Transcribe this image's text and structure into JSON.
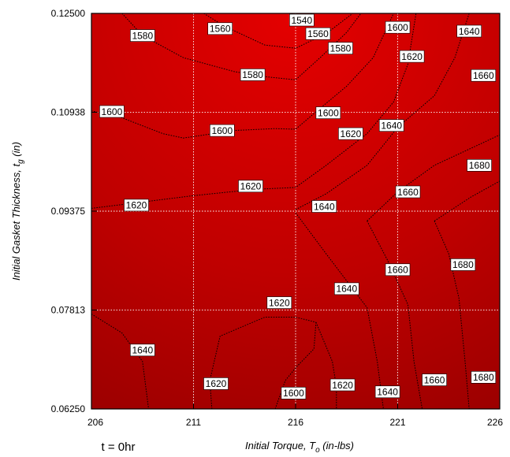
{
  "chart_data": {
    "type": "contour",
    "x_ticks": [
      "206",
      "211",
      "216",
      "221",
      "226"
    ],
    "y_ticks": [
      "0.06250",
      "0.07813",
      "0.09375",
      "0.10938",
      "0.12500"
    ],
    "xlim": [
      206,
      226
    ],
    "ylim": [
      0.0625,
      0.125
    ],
    "grid": true,
    "xlabel": "Initial Torque, T",
    "xlabel_sub": "o",
    "xlabel_unit": " (in-lbs)",
    "ylabel": "Initial Gasket Thickness, t",
    "ylabel_sub": "g",
    "ylabel_unit": " (in)",
    "annotation": "t = 0hr",
    "colors": {
      "low": "#e40000",
      "high": "#960000",
      "grid": "#ffffff",
      "contour": "#000000"
    },
    "contours": [
      {
        "level": "1540",
        "points": [
          [
            215.8,
            0.125
          ],
          [
            216.3,
            0.124
          ],
          [
            216.8,
            0.125
          ]
        ]
      },
      {
        "level": "1560",
        "points": [
          [
            211.5,
            0.125
          ],
          [
            212.5,
            0.123
          ],
          [
            214.5,
            0.12
          ],
          [
            216.0,
            0.1195
          ],
          [
            217.5,
            0.1218
          ],
          [
            218.8,
            0.125
          ]
        ]
      },
      {
        "level": "1580",
        "points": [
          [
            207.5,
            0.125
          ],
          [
            208.5,
            0.1215
          ],
          [
            210.5,
            0.118
          ],
          [
            213.0,
            0.1158
          ],
          [
            214.5,
            0.115
          ],
          [
            216.0,
            0.1145
          ],
          [
            217.2,
            0.118
          ],
          [
            218.5,
            0.122
          ],
          [
            219.2,
            0.125
          ]
        ]
      },
      {
        "level": "1600",
        "points": [
          [
            206.0,
            0.1096
          ],
          [
            207.5,
            0.1085
          ],
          [
            209.5,
            0.106
          ],
          [
            210.5,
            0.1053
          ],
          [
            213.0,
            0.1065
          ],
          [
            215.0,
            0.1068
          ],
          [
            216.0,
            0.1067
          ],
          [
            217.2,
            0.11
          ],
          [
            218.5,
            0.1135
          ],
          [
            219.8,
            0.118
          ],
          [
            220.8,
            0.125
          ]
        ]
      },
      {
        "level": "1620",
        "points": [
          [
            206.0,
            0.0942
          ],
          [
            208.0,
            0.095
          ],
          [
            211.0,
            0.0962
          ],
          [
            214.0,
            0.0972
          ],
          [
            216.0,
            0.0975
          ],
          [
            217.5,
            0.101
          ],
          [
            219.5,
            0.106
          ],
          [
            220.8,
            0.111
          ],
          [
            221.5,
            0.117
          ],
          [
            221.9,
            0.125
          ]
        ]
      },
      {
        "level": "1640",
        "points": [
          [
            216.0,
            0.094
          ],
          [
            217.5,
            0.0965
          ],
          [
            219.5,
            0.101
          ],
          [
            221.0,
            0.107
          ],
          [
            222.8,
            0.112
          ],
          [
            223.8,
            0.118
          ],
          [
            224.5,
            0.125
          ]
        ]
      },
      {
        "level": "1660",
        "points": [
          [
            219.5,
            0.0922
          ],
          [
            221.0,
            0.0968
          ],
          [
            222.8,
            0.101
          ],
          [
            224.8,
            0.104
          ],
          [
            226.0,
            0.1058
          ]
        ]
      },
      {
        "level": "1680",
        "points": [
          [
            222.8,
            0.0922
          ],
          [
            224.6,
            0.096
          ],
          [
            226.0,
            0.0985
          ]
        ]
      },
      {
        "level": "1640",
        "points": [
          [
            206.0,
            0.0775
          ],
          [
            207.5,
            0.0745
          ],
          [
            208.5,
            0.07
          ],
          [
            208.8,
            0.0625
          ]
        ]
      },
      {
        "level": "1620",
        "points": [
          [
            211.9,
            0.0625
          ],
          [
            211.8,
            0.067
          ],
          [
            212.3,
            0.074
          ],
          [
            214.5,
            0.077
          ],
          [
            216.0,
            0.077
          ],
          [
            217.0,
            0.0762
          ]
        ]
      },
      {
        "level": "1600",
        "points": [
          [
            215.0,
            0.0625
          ],
          [
            215.5,
            0.067
          ],
          [
            216.0,
            0.069
          ],
          [
            216.9,
            0.072
          ],
          [
            217.0,
            0.0762
          ]
        ]
      },
      {
        "level": "1620",
        "points": [
          [
            217.0,
            0.0762
          ],
          [
            217.8,
            0.07
          ],
          [
            218.0,
            0.066
          ],
          [
            218.0,
            0.0625
          ]
        ]
      },
      {
        "level": "1640",
        "points": [
          [
            216.0,
            0.0935
          ],
          [
            217.5,
            0.087
          ],
          [
            219.5,
            0.0785
          ],
          [
            220.0,
            0.07
          ],
          [
            220.3,
            0.0625
          ]
        ]
      },
      {
        "level": "1660",
        "points": [
          [
            219.5,
            0.0922
          ],
          [
            220.5,
            0.086
          ],
          [
            221.5,
            0.079
          ],
          [
            221.8,
            0.07
          ],
          [
            222.2,
            0.0625
          ]
        ]
      },
      {
        "level": "1680",
        "points": [
          [
            222.8,
            0.0922
          ],
          [
            223.5,
            0.087
          ],
          [
            224.0,
            0.08
          ],
          [
            224.3,
            0.07
          ],
          [
            224.5,
            0.0625
          ]
        ]
      }
    ],
    "labels": [
      {
        "text": "1540",
        "x": 216.3,
        "y": 0.1248
      },
      {
        "text": "1580",
        "x": 208.5,
        "y": 0.1215
      },
      {
        "text": "1560",
        "x": 212.3,
        "y": 0.1226
      },
      {
        "text": "1560",
        "x": 217.1,
        "y": 0.1218
      },
      {
        "text": "1600",
        "x": 221.0,
        "y": 0.1228
      },
      {
        "text": "1640",
        "x": 224.5,
        "y": 0.1222
      },
      {
        "text": "1580",
        "x": 218.2,
        "y": 0.1195
      },
      {
        "text": "1620",
        "x": 221.7,
        "y": 0.1182
      },
      {
        "text": "1580",
        "x": 213.9,
        "y": 0.1153
      },
      {
        "text": "1660",
        "x": 225.2,
        "y": 0.1152
      },
      {
        "text": "1600",
        "x": 207.0,
        "y": 0.1095
      },
      {
        "text": "1600",
        "x": 217.6,
        "y": 0.1093
      },
      {
        "text": "1640",
        "x": 220.7,
        "y": 0.1073
      },
      {
        "text": "1600",
        "x": 212.4,
        "y": 0.1065
      },
      {
        "text": "1620",
        "x": 218.7,
        "y": 0.106
      },
      {
        "text": "1680",
        "x": 225.0,
        "y": 0.101
      },
      {
        "text": "1620",
        "x": 213.8,
        "y": 0.0977
      },
      {
        "text": "1660",
        "x": 221.5,
        "y": 0.0968
      },
      {
        "text": "1620",
        "x": 208.2,
        "y": 0.0947
      },
      {
        "text": "1640",
        "x": 217.4,
        "y": 0.0945
      },
      {
        "text": "1680",
        "x": 224.2,
        "y": 0.0853
      },
      {
        "text": "1660",
        "x": 221.0,
        "y": 0.0845
      },
      {
        "text": "1640",
        "x": 218.5,
        "y": 0.0815
      },
      {
        "text": "1620",
        "x": 215.2,
        "y": 0.0793
      },
      {
        "text": "1640",
        "x": 208.5,
        "y": 0.0718
      },
      {
        "text": "1620",
        "x": 212.1,
        "y": 0.0665
      },
      {
        "text": "1620",
        "x": 218.3,
        "y": 0.0663
      },
      {
        "text": "1660",
        "x": 222.8,
        "y": 0.0671
      },
      {
        "text": "1680",
        "x": 225.2,
        "y": 0.0675
      },
      {
        "text": "1640",
        "x": 220.5,
        "y": 0.0652
      },
      {
        "text": "1600",
        "x": 215.9,
        "y": 0.065
      }
    ]
  }
}
